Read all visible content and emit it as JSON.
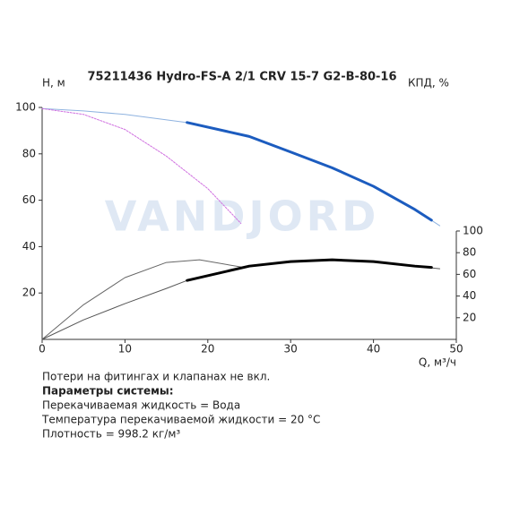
{
  "chart_data": {
    "type": "line",
    "title": "75211436 Hydro-FS-A 2/1 CRV 15-7 G2-B-80-16",
    "y_label": "H, м",
    "y2_label": "КПД, %",
    "x_label": "Q, м³/ч",
    "watermark": "VANDJORD",
    "xlim": [
      0,
      50
    ],
    "xticks": [
      0,
      10,
      20,
      30,
      40,
      50
    ],
    "ylim": [
      0,
      100
    ],
    "yticks": [
      20,
      40,
      60,
      80,
      100
    ],
    "y2lim": [
      0,
      214
    ],
    "y2ticks": [
      20,
      40,
      60,
      80,
      100
    ],
    "series": [
      {
        "color": "#8fb3e0",
        "width": 1,
        "x": [
          0,
          5,
          10,
          17.5,
          25,
          30,
          35,
          40,
          45,
          48
        ],
        "values": [
          99.5,
          98.5,
          97,
          93.5,
          87.5,
          80.8,
          74,
          66,
          56,
          49
        ]
      },
      {
        "color": "#1c5cbf",
        "width": 3,
        "x": [
          17.5,
          25,
          30,
          35,
          40,
          45,
          47
        ],
        "values": [
          93.5,
          87.5,
          80.8,
          74,
          66,
          56,
          51.4
        ]
      },
      {
        "color": "#d070e0",
        "width": 1,
        "dash": true,
        "x": [
          0,
          5,
          10,
          15,
          20,
          24
        ],
        "values": [
          99.5,
          97,
          90.5,
          79,
          65,
          50
        ]
      },
      {
        "color": "#666666",
        "width": 1,
        "axis": "y2",
        "x": [
          0,
          5,
          10,
          15,
          19,
          24
        ],
        "values": [
          0,
          32,
          57,
          71,
          73.4,
          66.8
        ]
      },
      {
        "color": "#555555",
        "width": 1,
        "axis": "y2",
        "x": [
          0,
          5,
          10,
          15,
          17.5,
          25,
          30,
          35,
          40,
          45,
          48
        ],
        "values": [
          0,
          18,
          33,
          47,
          54.4,
          67.6,
          71.8,
          73.4,
          71.8,
          67.6,
          65.2
        ]
      },
      {
        "color": "#000000",
        "width": 3,
        "axis": "y2",
        "x": [
          17.5,
          25,
          30,
          35,
          40,
          45,
          47
        ],
        "values": [
          54.4,
          67.6,
          71.8,
          73.4,
          71.8,
          67.6,
          66.4
        ]
      }
    ]
  },
  "notes": {
    "line1": "Потери на фитингах и клапанах не вкл.",
    "heading": "Параметры системы:",
    "fluid": "Перекачиваемая жидкость = Вода",
    "temperature": "Температура перекачиваемой жидкости = 20 °C",
    "density": "Плотность = 998.2 кг/м³"
  }
}
